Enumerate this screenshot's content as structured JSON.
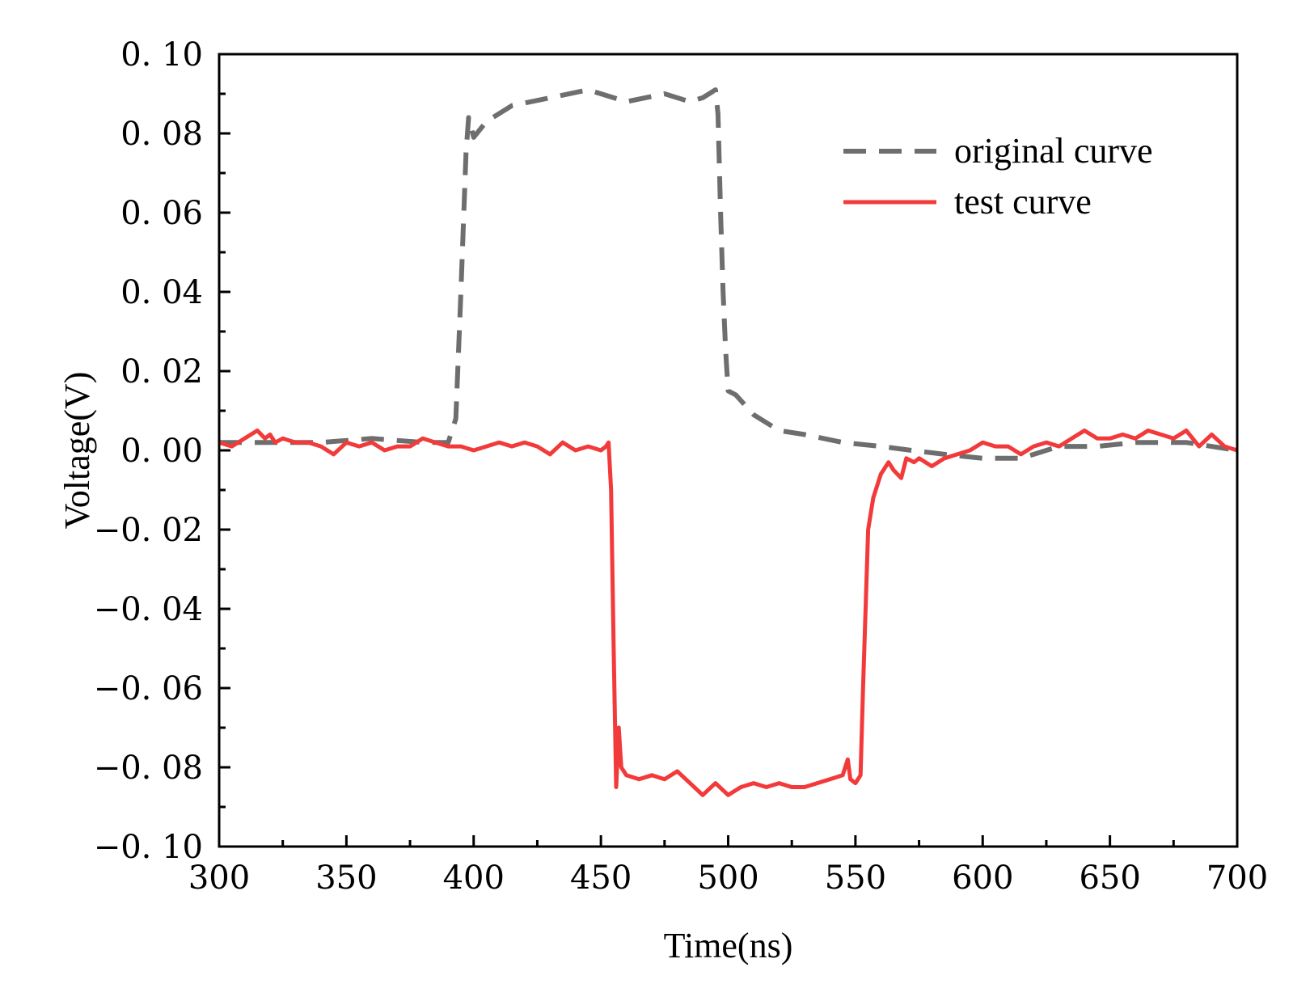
{
  "chart_data": {
    "type": "line",
    "title": "",
    "xlabel": "Time(ns)",
    "ylabel": "Voltage(V)",
    "xlim": [
      300,
      700
    ],
    "ylim": [
      -0.1,
      0.1
    ],
    "x_ticks": [
      300,
      350,
      400,
      450,
      500,
      550,
      600,
      650,
      700
    ],
    "x_tick_labels": [
      "300",
      "350",
      "400",
      "450",
      "500",
      "550",
      "600",
      "650",
      "700"
    ],
    "y_ticks": [
      0.1,
      0.08,
      0.06,
      0.04,
      0.02,
      0.0,
      -0.02,
      -0.04,
      -0.06,
      -0.08,
      -0.1
    ],
    "y_tick_labels": [
      "0. 10",
      "0. 08",
      "0. 06",
      "0. 04",
      "0. 02",
      "0. 00",
      "−0. 02",
      "−0. 04",
      "−0. 06",
      "−0. 08",
      "−0. 10"
    ],
    "grid": false,
    "legend_position": "top-right",
    "series": [
      {
        "name": "original curve",
        "style": "dashed",
        "color": "#6e6e6e",
        "x": [
          300,
          320,
          340,
          360,
          380,
          390,
          393,
          395,
          397,
          398,
          400,
          405,
          415,
          430,
          445,
          460,
          475,
          485,
          490,
          495,
          496,
          497,
          498,
          499,
          500,
          503,
          510,
          520,
          530,
          545,
          560,
          572,
          585,
          600,
          615,
          630,
          645,
          660,
          680,
          700
        ],
        "y": [
          0.002,
          0.002,
          0.002,
          0.003,
          0.002,
          0.002,
          0.008,
          0.04,
          0.075,
          0.084,
          0.079,
          0.083,
          0.087,
          0.089,
          0.091,
          0.088,
          0.09,
          0.088,
          0.089,
          0.091,
          0.085,
          0.06,
          0.04,
          0.025,
          0.015,
          0.014,
          0.009,
          0.005,
          0.004,
          0.002,
          0.001,
          0.0,
          -0.001,
          -0.002,
          -0.002,
          0.001,
          0.001,
          0.002,
          0.002,
          0.0
        ],
        "values": [
          0.002,
          0.002,
          0.002,
          0.003,
          0.002,
          0.002,
          0.008,
          0.04,
          0.075,
          0.084,
          0.079,
          0.083,
          0.087,
          0.089,
          0.091,
          0.088,
          0.09,
          0.088,
          0.089,
          0.091,
          0.085,
          0.06,
          0.04,
          0.025,
          0.015,
          0.014,
          0.009,
          0.005,
          0.004,
          0.002,
          0.001,
          0.0,
          -0.001,
          -0.002,
          -0.002,
          0.001,
          0.001,
          0.002,
          0.002,
          0.0
        ]
      },
      {
        "name": "test curve",
        "style": "solid",
        "color": "#f23a3a",
        "x": [
          300,
          305,
          310,
          315,
          318,
          320,
          322,
          325,
          330,
          335,
          340,
          345,
          350,
          355,
          360,
          365,
          370,
          375,
          380,
          385,
          390,
          395,
          400,
          405,
          410,
          415,
          420,
          425,
          430,
          435,
          440,
          445,
          450,
          452,
          453,
          454,
          455,
          456,
          457,
          458,
          460,
          465,
          470,
          475,
          480,
          485,
          490,
          495,
          500,
          505,
          510,
          515,
          520,
          525,
          530,
          535,
          540,
          545,
          547,
          548,
          550,
          552,
          553,
          555,
          557,
          560,
          563,
          565,
          568,
          570,
          573,
          575,
          580,
          585,
          590,
          595,
          600,
          605,
          610,
          615,
          620,
          625,
          630,
          635,
          640,
          645,
          650,
          655,
          660,
          665,
          670,
          675,
          680,
          685,
          690,
          695,
          700
        ],
        "y": [
          0.002,
          0.001,
          0.003,
          0.005,
          0.003,
          0.004,
          0.002,
          0.003,
          0.002,
          0.002,
          0.001,
          -0.001,
          0.002,
          0.001,
          0.002,
          0.0,
          0.001,
          0.001,
          0.003,
          0.002,
          0.001,
          0.001,
          0.0,
          0.001,
          0.002,
          0.001,
          0.002,
          0.001,
          -0.001,
          0.002,
          0.0,
          0.001,
          0.0,
          0.001,
          0.002,
          -0.01,
          -0.05,
          -0.085,
          -0.07,
          -0.08,
          -0.082,
          -0.083,
          -0.082,
          -0.083,
          -0.081,
          -0.084,
          -0.087,
          -0.084,
          -0.087,
          -0.085,
          -0.084,
          -0.085,
          -0.084,
          -0.085,
          -0.085,
          -0.084,
          -0.083,
          -0.082,
          -0.078,
          -0.083,
          -0.084,
          -0.082,
          -0.06,
          -0.02,
          -0.012,
          -0.006,
          -0.003,
          -0.005,
          -0.007,
          -0.002,
          -0.003,
          -0.002,
          -0.004,
          -0.002,
          -0.001,
          0.0,
          0.002,
          0.001,
          0.001,
          -0.001,
          0.001,
          0.002,
          0.001,
          0.003,
          0.005,
          0.003,
          0.003,
          0.004,
          0.003,
          0.005,
          0.004,
          0.003,
          0.005,
          0.001,
          0.004,
          0.001,
          0.0
        ],
        "values": [
          0.002,
          0.001,
          0.003,
          0.005,
          0.003,
          0.004,
          0.002,
          0.003,
          0.002,
          0.002,
          0.001,
          -0.001,
          0.002,
          0.001,
          0.002,
          0.0,
          0.001,
          0.001,
          0.003,
          0.002,
          0.001,
          0.001,
          0.0,
          0.001,
          0.002,
          0.001,
          0.002,
          0.001,
          -0.001,
          0.002,
          0.0,
          0.001,
          0.0,
          0.001,
          0.002,
          -0.01,
          -0.05,
          -0.085,
          -0.07,
          -0.08,
          -0.082,
          -0.083,
          -0.082,
          -0.083,
          -0.081,
          -0.084,
          -0.087,
          -0.084,
          -0.087,
          -0.085,
          -0.084,
          -0.085,
          -0.084,
          -0.085,
          -0.085,
          -0.084,
          -0.083,
          -0.082,
          -0.078,
          -0.083,
          -0.084,
          -0.082,
          -0.06,
          -0.02,
          -0.012,
          -0.006,
          -0.003,
          -0.005,
          -0.007,
          -0.002,
          -0.003,
          -0.002,
          -0.004,
          -0.002,
          -0.001,
          0.0,
          0.002,
          0.001,
          0.001,
          -0.001,
          0.001,
          0.002,
          0.001,
          0.003,
          0.005,
          0.003,
          0.003,
          0.004,
          0.003,
          0.005,
          0.004,
          0.003,
          0.005,
          0.001,
          0.004,
          0.001,
          0.0
        ]
      }
    ]
  }
}
